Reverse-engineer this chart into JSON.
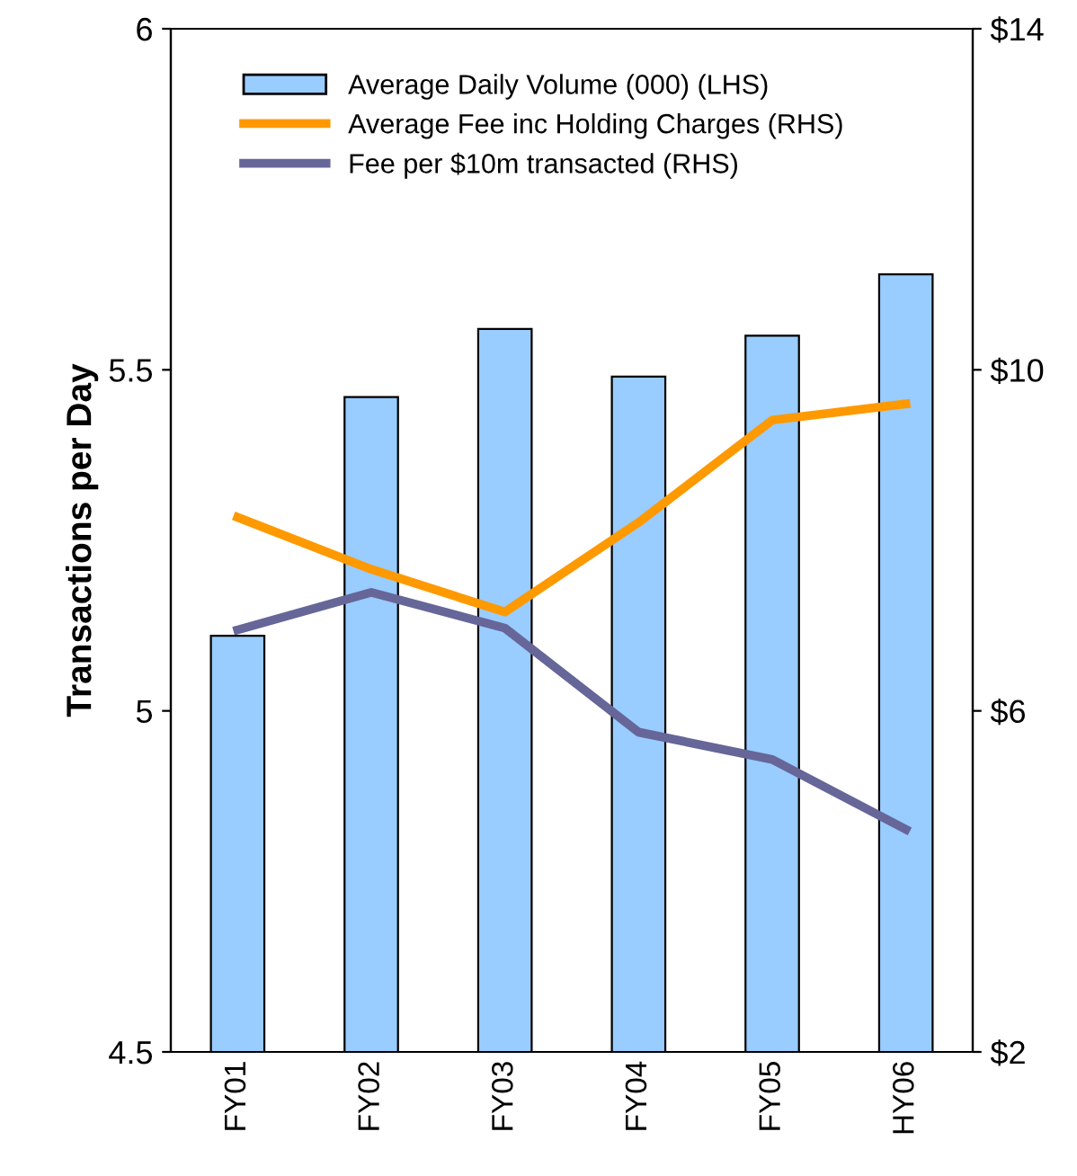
{
  "chart_data": {
    "type": "bar",
    "ylabel": "Transactions per Day",
    "categories": [
      "FY01",
      "FY02",
      "FY03",
      "FY04",
      "FY05",
      "HY06"
    ],
    "series": [
      {
        "name": "Average Daily Volume (000) (LHS)",
        "color": "#99ccff",
        "values": [
          5.11,
          5.46,
          5.56,
          5.49,
          5.55,
          5.64
        ]
      },
      {
        "name": "Average Fee inc Holding Charges (RHS)",
        "type": "line",
        "axis": "y2",
        "color": "#ff9900",
        "values": [
          8.27,
          7.66,
          7.16,
          8.21,
          9.41,
          9.6
        ]
      },
      {
        "name": "Fee per $10m transacted (RHS)",
        "type": "line",
        "axis": "y2",
        "color": "#666699",
        "values": [
          6.95,
          7.39,
          6.97,
          5.75,
          5.43,
          4.61
        ]
      }
    ],
    "ylim": [
      4.5,
      6
    ],
    "yticks": [
      4.5,
      5,
      5.5,
      6
    ],
    "y2lim": [
      2,
      14
    ],
    "y2ticks": [
      {
        "value": 2,
        "label": "$2"
      },
      {
        "value": 6,
        "label": "$6"
      },
      {
        "value": 10,
        "label": "$10"
      },
      {
        "value": 14,
        "label": "$14"
      }
    ],
    "grid": false,
    "legend": "top left",
    "marker": "none",
    "line_style": "solid"
  }
}
